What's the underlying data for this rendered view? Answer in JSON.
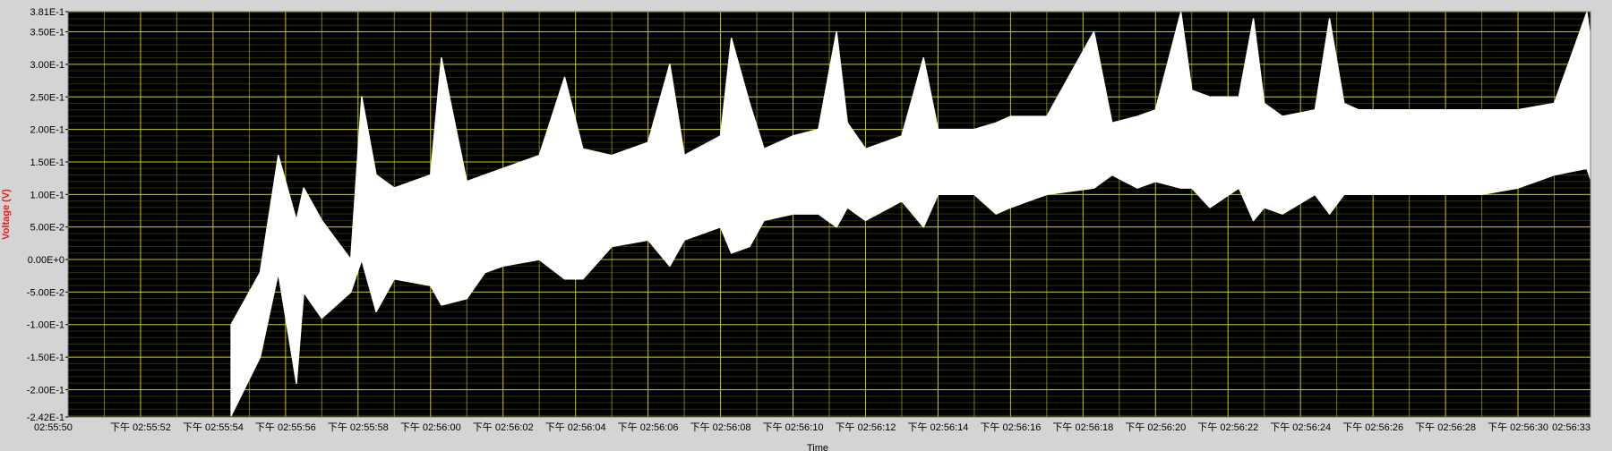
{
  "chart_data": {
    "type": "line",
    "ylabel": "Voltage (V)",
    "xlabel": "Time",
    "ylim": [
      -0.242,
      0.381
    ],
    "y_ticks": [
      {
        "value": 0.381,
        "label": "3.81E-1"
      },
      {
        "value": 0.35,
        "label": "3.50E-1"
      },
      {
        "value": 0.3,
        "label": "3.00E-1"
      },
      {
        "value": 0.25,
        "label": "2.50E-1"
      },
      {
        "value": 0.2,
        "label": "2.00E-1"
      },
      {
        "value": 0.15,
        "label": "1.50E-1"
      },
      {
        "value": 0.1,
        "label": "1.00E-1"
      },
      {
        "value": 0.05,
        "label": "5.00E-2"
      },
      {
        "value": 0.0,
        "label": "0.00E+0"
      },
      {
        "value": -0.05,
        "label": "-5.00E-2"
      },
      {
        "value": -0.1,
        "label": "-1.00E-1"
      },
      {
        "value": -0.15,
        "label": "-1.50E-1"
      },
      {
        "value": -0.2,
        "label": "-2.00E-1"
      },
      {
        "value": -0.242,
        "label": "-2.42E-1"
      }
    ],
    "x_ticks": [
      {
        "value": 0,
        "label": "02:55:50"
      },
      {
        "value": 2,
        "label": "下午 02:55:52"
      },
      {
        "value": 4,
        "label": "下午 02:55:54"
      },
      {
        "value": 6,
        "label": "下午 02:55:56"
      },
      {
        "value": 8,
        "label": "下午 02:55:58"
      },
      {
        "value": 10,
        "label": "下午 02:56:00"
      },
      {
        "value": 12,
        "label": "下午 02:56:02"
      },
      {
        "value": 14,
        "label": "下午 02:56:04"
      },
      {
        "value": 16,
        "label": "下午 02:56:06"
      },
      {
        "value": 18,
        "label": "下午 02:56:08"
      },
      {
        "value": 20,
        "label": "下午 02:56:10"
      },
      {
        "value": 22,
        "label": "下午 02:56:12"
      },
      {
        "value": 24,
        "label": "下午 02:56:14"
      },
      {
        "value": 26,
        "label": "下午 02:56:16"
      },
      {
        "value": 28,
        "label": "下午 02:56:18"
      },
      {
        "value": 30,
        "label": "下午 02:56:20"
      },
      {
        "value": 32,
        "label": "下午 02:56:22"
      },
      {
        "value": 34,
        "label": "下午 02:56:24"
      },
      {
        "value": 36,
        "label": "下午 02:56:26"
      },
      {
        "value": 38,
        "label": "下午 02:56:28"
      },
      {
        "value": 40,
        "label": "下午 02:56:30"
      },
      {
        "value": 42,
        "label": "02:56:33"
      }
    ],
    "xlim": [
      0,
      42
    ],
    "grid": true,
    "colors": {
      "plot_bg": "#000000",
      "grid": "#c8c800",
      "trace": "#ffffff",
      "ylabel": "#e8191a",
      "frame_bg": "#d4d4d4"
    },
    "series": [
      {
        "t": [
          4.5,
          5.3,
          5.8,
          6.3,
          6.5,
          7.0,
          7.8,
          8.1,
          8.5,
          9.0,
          10.0,
          10.3,
          11.0,
          11.5,
          12.0,
          13.0,
          13.7,
          14.2,
          15.0,
          16.0,
          16.6,
          17.0,
          18.0,
          18.3,
          18.8,
          19.2,
          20.0,
          20.7,
          21.2,
          21.5,
          22.0,
          23.0,
          23.6,
          24.0,
          25.0,
          25.6,
          26.0,
          27.0,
          28.3,
          28.8,
          29.5,
          30.0,
          30.7,
          31.0,
          31.5,
          32.3,
          32.7,
          33.0,
          33.5,
          34.4,
          34.8,
          35.2,
          35.6,
          36.0,
          37.0,
          38.0,
          39.0,
          40.0,
          41.0,
          41.9,
          42.2,
          42.8,
          44.0
        ],
        "upper": [
          -0.1,
          -0.02,
          0.16,
          0.06,
          0.11,
          0.06,
          0.0,
          0.25,
          0.13,
          0.11,
          0.13,
          0.31,
          0.12,
          0.13,
          0.14,
          0.16,
          0.28,
          0.17,
          0.16,
          0.18,
          0.3,
          0.16,
          0.19,
          0.34,
          0.24,
          0.17,
          0.19,
          0.2,
          0.35,
          0.21,
          0.17,
          0.19,
          0.31,
          0.2,
          0.2,
          0.21,
          0.22,
          0.22,
          0.35,
          0.21,
          0.22,
          0.23,
          0.38,
          0.26,
          0.25,
          0.25,
          0.37,
          0.24,
          0.22,
          0.23,
          0.37,
          0.24,
          0.23,
          0.23,
          0.23,
          0.23,
          0.23,
          0.23,
          0.24,
          0.38,
          0.25,
          0.23,
          0.24
        ],
        "lower": [
          -0.24,
          -0.15,
          -0.02,
          -0.19,
          -0.05,
          -0.09,
          -0.05,
          0.0,
          -0.08,
          -0.03,
          -0.04,
          -0.07,
          -0.06,
          -0.02,
          -0.01,
          0.0,
          -0.03,
          -0.03,
          0.02,
          0.03,
          -0.01,
          0.03,
          0.05,
          0.01,
          0.02,
          0.06,
          0.07,
          0.07,
          0.05,
          0.08,
          0.06,
          0.09,
          0.05,
          0.1,
          0.1,
          0.07,
          0.08,
          0.1,
          0.11,
          0.13,
          0.11,
          0.12,
          0.11,
          0.11,
          0.08,
          0.11,
          0.06,
          0.08,
          0.07,
          0.1,
          0.07,
          0.1,
          0.1,
          0.1,
          0.1,
          0.1,
          0.1,
          0.11,
          0.13,
          0.14,
          0.09,
          0.11,
          0.13
        ]
      }
    ]
  }
}
